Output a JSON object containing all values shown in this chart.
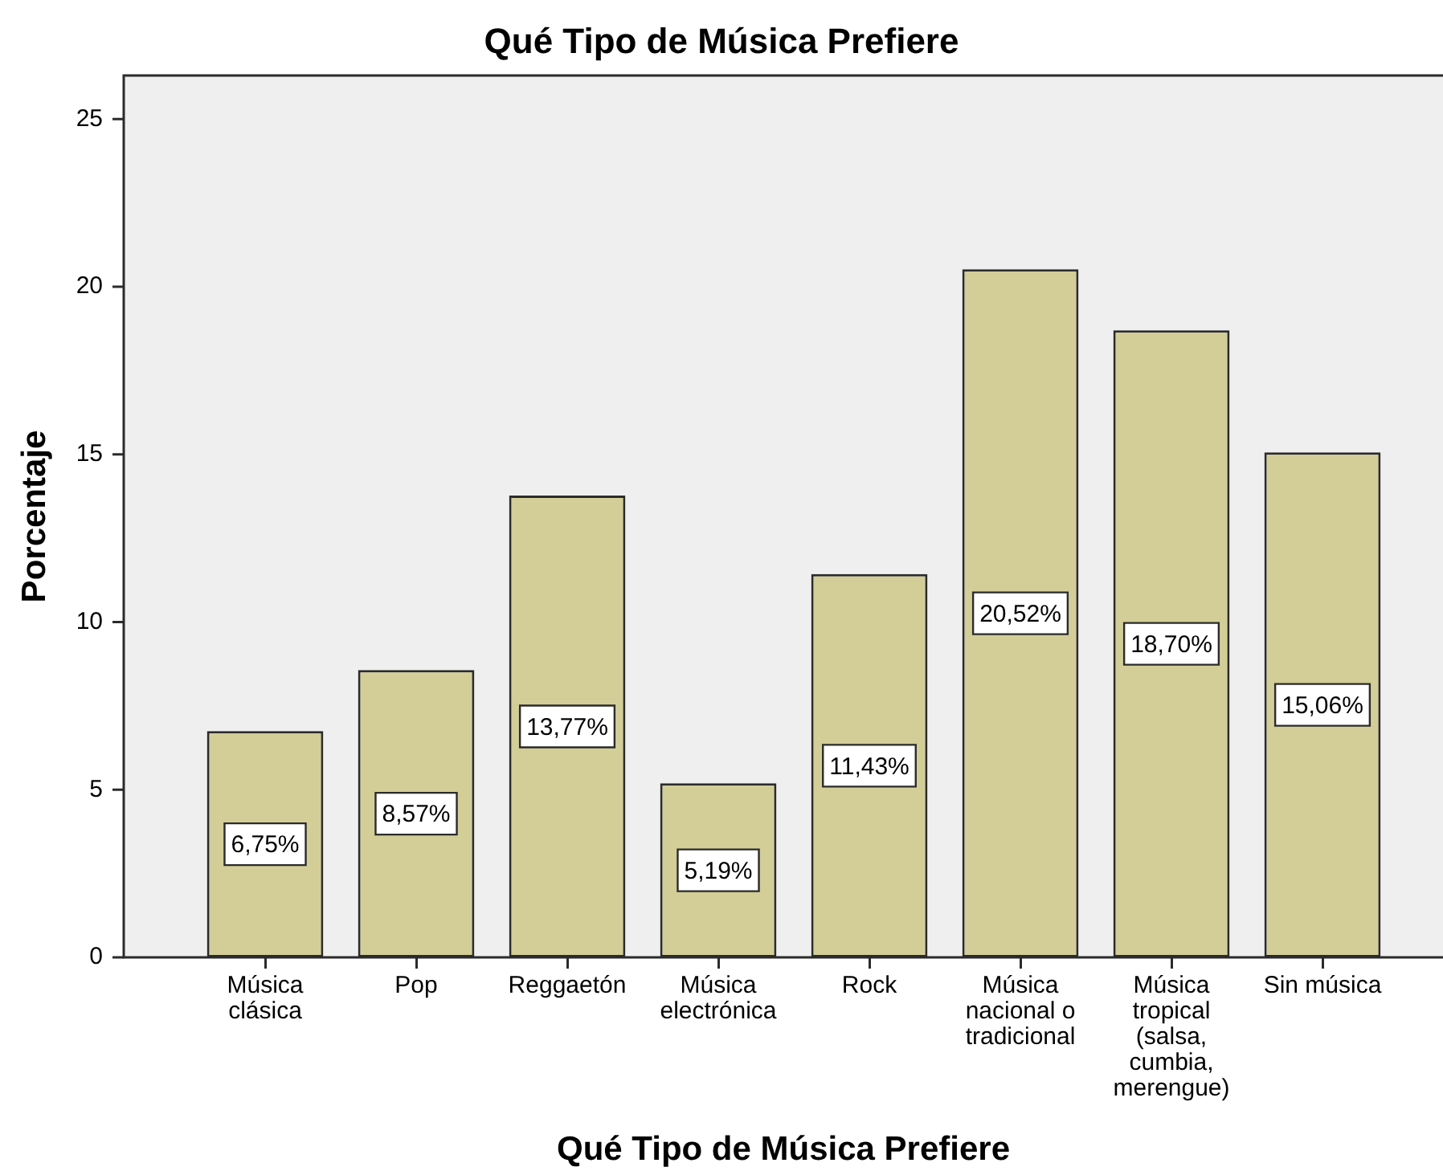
{
  "chart_data": {
    "type": "bar",
    "title": "Qué Tipo de Música Prefiere",
    "xlabel": "Qué Tipo de Música Prefiere",
    "ylabel": "Porcentaje",
    "categories": [
      "Música clásica",
      "Pop",
      "Reggaetón",
      "Música electrónica",
      "Rock",
      "Música nacional o tradicional",
      "Música tropical (salsa, cumbia, merengue)",
      "Sin música"
    ],
    "values": [
      6.75,
      8.57,
      13.77,
      5.19,
      11.43,
      20.52,
      18.7,
      15.06
    ],
    "value_labels": [
      "6,75%",
      "8,57%",
      "13,77%",
      "5,19%",
      "11,43%",
      "20,52%",
      "18,70%",
      "15,06%"
    ],
    "color": "#d3ce97",
    "ylim": [
      0,
      26.3
    ],
    "yticks": [
      0,
      5,
      10,
      15,
      20,
      25
    ]
  }
}
